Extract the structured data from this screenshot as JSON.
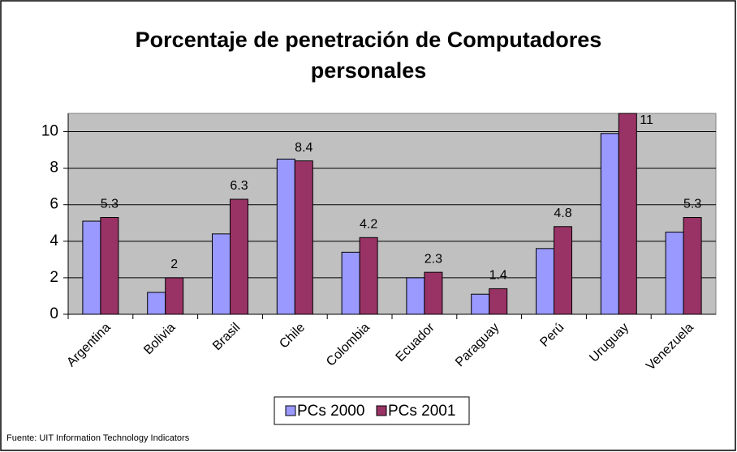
{
  "chart_data": {
    "type": "bar",
    "title": "Porcentaje de penetración de Computadores personales",
    "categories": [
      "Argentina",
      "Bolivia",
      "Brasil",
      "Chile",
      "Colombia",
      "Ecuador",
      "Paraguay",
      "Perú",
      "Uruguay",
      "Venezuela"
    ],
    "series": [
      {
        "name": "PCs 2000",
        "color": "#9999ff",
        "values": [
          5.1,
          1.2,
          4.4,
          8.5,
          3.4,
          2.0,
          1.1,
          3.6,
          9.9,
          4.5
        ],
        "data_labels": false
      },
      {
        "name": "PCs 2001",
        "color": "#993366",
        "values": [
          5.3,
          2,
          6.3,
          8.4,
          4.2,
          2.3,
          1.4,
          4.8,
          11,
          5.3
        ],
        "data_labels": true
      }
    ],
    "ylim": [
      0,
      11
    ],
    "yticks": [
      0,
      2,
      4,
      6,
      8,
      10
    ],
    "grid": true,
    "legend": "bottom",
    "plot_background": "#c0c0c0",
    "source": "Fuente: UIT Information Technology Indicators"
  }
}
